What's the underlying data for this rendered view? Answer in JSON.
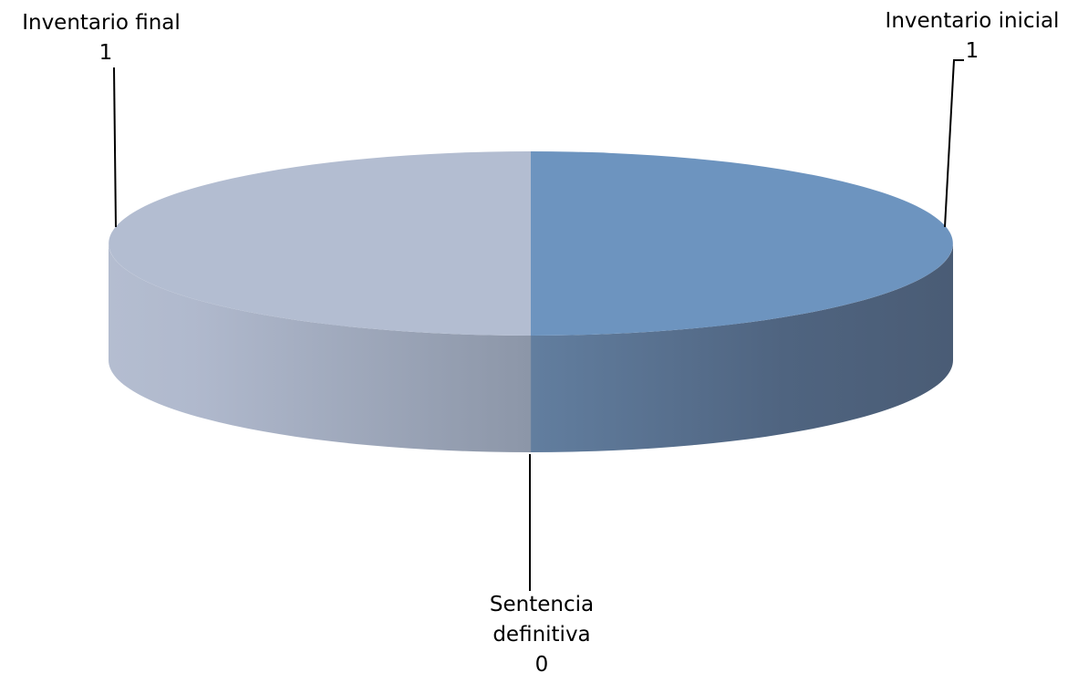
{
  "chart_data": {
    "type": "pie",
    "style": "3d",
    "legend": "none",
    "slices": [
      {
        "label": "Inventario inicial",
        "value": 1,
        "color": "#6d94bf"
      },
      {
        "label": "Sentencia definitiva",
        "value": 0,
        "color": "#a6b8d4"
      },
      {
        "label": "Inventario final",
        "value": 1,
        "color": "#b3bdd1"
      }
    ]
  }
}
